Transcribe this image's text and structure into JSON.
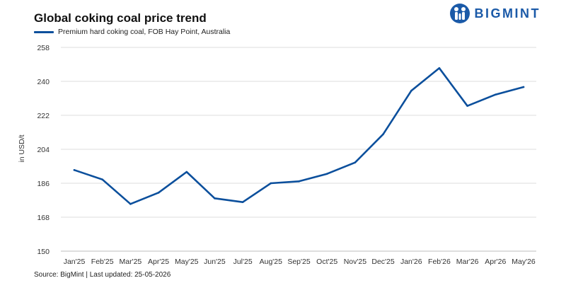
{
  "brand": {
    "name": "BIGMINT",
    "color": "#1b5aa8"
  },
  "footer": {
    "source": "Source: BigMint | Last updated: 25-05-2026"
  },
  "chart_data": {
    "type": "line",
    "title": "Global coking coal price trend",
    "xlabel": "",
    "ylabel": "in USD/t",
    "categories": [
      "Jan'25",
      "Feb'25",
      "Mar'25",
      "Apr'25",
      "May'25",
      "Jun'25",
      "Jul'25",
      "Aug'25",
      "Sep'25",
      "Oct'25",
      "Nov'25",
      "Dec'25",
      "Jan'26",
      "Feb'26",
      "Mar'26",
      "Apr'26",
      "May'26"
    ],
    "series": [
      {
        "name": "Premium hard coking coal, FOB Hay Point, Australia",
        "color": "#0b4f9c",
        "values": [
          193,
          188,
          175,
          181,
          192,
          178,
          176,
          186,
          187,
          191,
          197,
          212,
          235,
          247,
          227,
          233,
          237
        ]
      }
    ],
    "ylim": [
      150,
      258
    ],
    "yticks": [
      150,
      168,
      186,
      204,
      222,
      240,
      258
    ],
    "grid": "horizontal",
    "legend_position": "top-left"
  }
}
